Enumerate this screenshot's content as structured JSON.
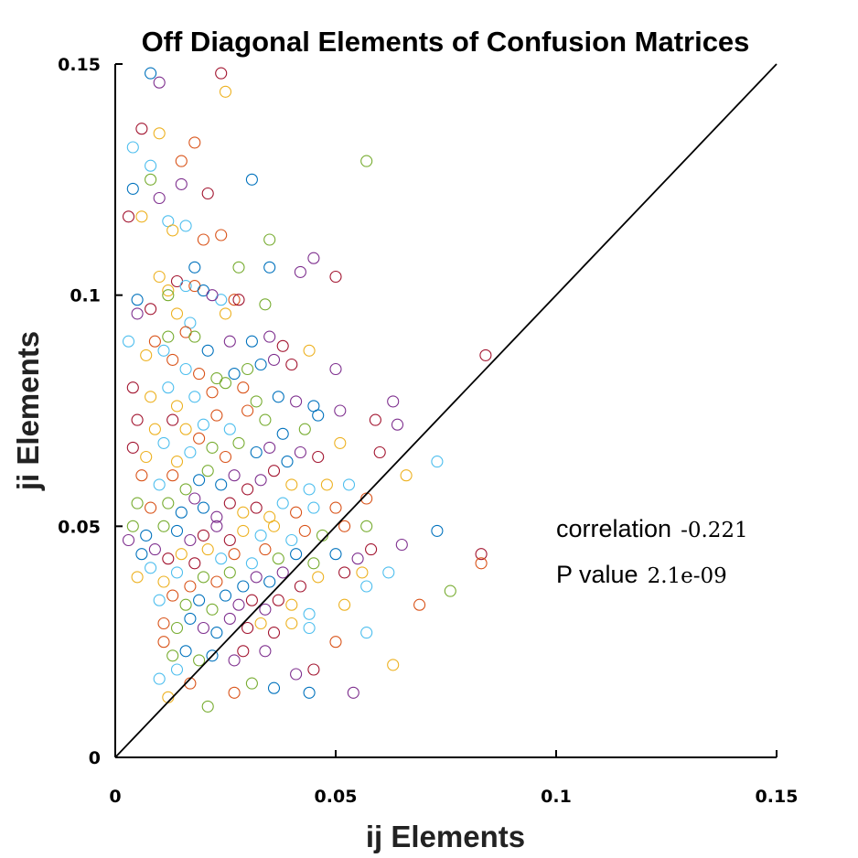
{
  "chart_data": {
    "type": "scatter",
    "title": "Off Diagonal Elements of Confusion Matrices",
    "xlabel": "ij Elements",
    "ylabel": "ji Elements",
    "xlim": [
      0,
      0.15
    ],
    "ylim": [
      0,
      0.15
    ],
    "xticks": [
      "0",
      "0.05",
      "0.1",
      "0.15"
    ],
    "yticks": [
      "0",
      "0.05",
      "0.1",
      "0.15"
    ],
    "grid": false,
    "reference_line": {
      "from": [
        0,
        0
      ],
      "to": [
        0.15,
        0.15
      ],
      "color": "#000000"
    },
    "marker": "open-circle",
    "series_colors": [
      "#0072BD",
      "#D95319",
      "#EDB120",
      "#7E2F8E",
      "#77AC30",
      "#4DBEEE",
      "#A2142F"
    ],
    "annotation": {
      "correlation_label": "correlation",
      "correlation_value": "-0.221",
      "pvalue_label": "P value",
      "pvalue_value": "2.1e-09"
    },
    "points": [
      [
        0.008,
        0.148
      ],
      [
        0.01,
        0.146
      ],
      [
        0.024,
        0.148
      ],
      [
        0.025,
        0.144
      ],
      [
        0.006,
        0.136
      ],
      [
        0.01,
        0.135
      ],
      [
        0.004,
        0.132
      ],
      [
        0.018,
        0.133
      ],
      [
        0.008,
        0.128
      ],
      [
        0.015,
        0.129
      ],
      [
        0.057,
        0.129
      ],
      [
        0.031,
        0.125
      ],
      [
        0.008,
        0.125
      ],
      [
        0.004,
        0.123
      ],
      [
        0.015,
        0.124
      ],
      [
        0.021,
        0.122
      ],
      [
        0.01,
        0.121
      ],
      [
        0.003,
        0.117
      ],
      [
        0.006,
        0.117
      ],
      [
        0.012,
        0.116
      ],
      [
        0.013,
        0.114
      ],
      [
        0.016,
        0.115
      ],
      [
        0.024,
        0.113
      ],
      [
        0.035,
        0.112
      ],
      [
        0.02,
        0.112
      ],
      [
        0.028,
        0.106
      ],
      [
        0.018,
        0.106
      ],
      [
        0.045,
        0.108
      ],
      [
        0.035,
        0.106
      ],
      [
        0.042,
        0.105
      ],
      [
        0.05,
        0.104
      ],
      [
        0.01,
        0.104
      ],
      [
        0.014,
        0.103
      ],
      [
        0.012,
        0.101
      ],
      [
        0.016,
        0.102
      ],
      [
        0.018,
        0.102
      ],
      [
        0.024,
        0.099
      ],
      [
        0.027,
        0.099
      ],
      [
        0.034,
        0.098
      ],
      [
        0.005,
        0.099
      ],
      [
        0.012,
        0.1
      ],
      [
        0.02,
        0.101
      ],
      [
        0.022,
        0.1
      ],
      [
        0.028,
        0.099
      ],
      [
        0.005,
        0.096
      ],
      [
        0.008,
        0.097
      ],
      [
        0.014,
        0.096
      ],
      [
        0.017,
        0.094
      ],
      [
        0.025,
        0.096
      ],
      [
        0.003,
        0.09
      ],
      [
        0.009,
        0.09
      ],
      [
        0.012,
        0.091
      ],
      [
        0.016,
        0.092
      ],
      [
        0.018,
        0.091
      ],
      [
        0.021,
        0.088
      ],
      [
        0.026,
        0.09
      ],
      [
        0.031,
        0.09
      ],
      [
        0.035,
        0.091
      ],
      [
        0.038,
        0.089
      ],
      [
        0.044,
        0.088
      ],
      [
        0.084,
        0.087
      ],
      [
        0.007,
        0.087
      ],
      [
        0.011,
        0.088
      ],
      [
        0.013,
        0.086
      ],
      [
        0.016,
        0.084
      ],
      [
        0.019,
        0.083
      ],
      [
        0.023,
        0.082
      ],
      [
        0.027,
        0.083
      ],
      [
        0.03,
        0.084
      ],
      [
        0.033,
        0.085
      ],
      [
        0.036,
        0.086
      ],
      [
        0.04,
        0.085
      ],
      [
        0.05,
        0.084
      ],
      [
        0.004,
        0.08
      ],
      [
        0.008,
        0.078
      ],
      [
        0.012,
        0.08
      ],
      [
        0.014,
        0.076
      ],
      [
        0.018,
        0.078
      ],
      [
        0.022,
        0.079
      ],
      [
        0.025,
        0.081
      ],
      [
        0.029,
        0.08
      ],
      [
        0.032,
        0.077
      ],
      [
        0.037,
        0.078
      ],
      [
        0.041,
        0.077
      ],
      [
        0.045,
        0.076
      ],
      [
        0.063,
        0.077
      ],
      [
        0.005,
        0.073
      ],
      [
        0.009,
        0.071
      ],
      [
        0.013,
        0.073
      ],
      [
        0.016,
        0.071
      ],
      [
        0.02,
        0.072
      ],
      [
        0.023,
        0.074
      ],
      [
        0.026,
        0.071
      ],
      [
        0.03,
        0.075
      ],
      [
        0.034,
        0.073
      ],
      [
        0.038,
        0.07
      ],
      [
        0.043,
        0.071
      ],
      [
        0.046,
        0.074
      ],
      [
        0.051,
        0.075
      ],
      [
        0.059,
        0.073
      ],
      [
        0.064,
        0.072
      ],
      [
        0.004,
        0.067
      ],
      [
        0.007,
        0.065
      ],
      [
        0.011,
        0.068
      ],
      [
        0.014,
        0.064
      ],
      [
        0.017,
        0.066
      ],
      [
        0.019,
        0.069
      ],
      [
        0.022,
        0.067
      ],
      [
        0.025,
        0.065
      ],
      [
        0.028,
        0.068
      ],
      [
        0.032,
        0.066
      ],
      [
        0.035,
        0.067
      ],
      [
        0.039,
        0.064
      ],
      [
        0.042,
        0.066
      ],
      [
        0.046,
        0.065
      ],
      [
        0.051,
        0.068
      ],
      [
        0.06,
        0.066
      ],
      [
        0.066,
        0.061
      ],
      [
        0.073,
        0.064
      ],
      [
        0.006,
        0.061
      ],
      [
        0.01,
        0.059
      ],
      [
        0.013,
        0.061
      ],
      [
        0.016,
        0.058
      ],
      [
        0.019,
        0.06
      ],
      [
        0.021,
        0.062
      ],
      [
        0.024,
        0.059
      ],
      [
        0.027,
        0.061
      ],
      [
        0.03,
        0.058
      ],
      [
        0.033,
        0.06
      ],
      [
        0.036,
        0.062
      ],
      [
        0.04,
        0.059
      ],
      [
        0.044,
        0.058
      ],
      [
        0.048,
        0.059
      ],
      [
        0.053,
        0.059
      ],
      [
        0.057,
        0.056
      ],
      [
        0.005,
        0.055
      ],
      [
        0.008,
        0.054
      ],
      [
        0.012,
        0.055
      ],
      [
        0.015,
        0.053
      ],
      [
        0.018,
        0.056
      ],
      [
        0.02,
        0.054
      ],
      [
        0.023,
        0.052
      ],
      [
        0.026,
        0.055
      ],
      [
        0.029,
        0.053
      ],
      [
        0.032,
        0.054
      ],
      [
        0.035,
        0.052
      ],
      [
        0.038,
        0.055
      ],
      [
        0.041,
        0.053
      ],
      [
        0.045,
        0.054
      ],
      [
        0.05,
        0.054
      ],
      [
        0.004,
        0.05
      ],
      [
        0.007,
        0.048
      ],
      [
        0.011,
        0.05
      ],
      [
        0.014,
        0.049
      ],
      [
        0.017,
        0.047
      ],
      [
        0.02,
        0.048
      ],
      [
        0.023,
        0.05
      ],
      [
        0.026,
        0.047
      ],
      [
        0.029,
        0.049
      ],
      [
        0.033,
        0.048
      ],
      [
        0.036,
        0.05
      ],
      [
        0.04,
        0.047
      ],
      [
        0.043,
        0.049
      ],
      [
        0.047,
        0.048
      ],
      [
        0.052,
        0.05
      ],
      [
        0.057,
        0.05
      ],
      [
        0.073,
        0.049
      ],
      [
        0.003,
        0.047
      ],
      [
        0.006,
        0.044
      ],
      [
        0.009,
        0.045
      ],
      [
        0.012,
        0.043
      ],
      [
        0.015,
        0.044
      ],
      [
        0.018,
        0.042
      ],
      [
        0.021,
        0.045
      ],
      [
        0.024,
        0.043
      ],
      [
        0.027,
        0.044
      ],
      [
        0.031,
        0.042
      ],
      [
        0.034,
        0.045
      ],
      [
        0.037,
        0.043
      ],
      [
        0.041,
        0.044
      ],
      [
        0.045,
        0.042
      ],
      [
        0.05,
        0.044
      ],
      [
        0.055,
        0.043
      ],
      [
        0.058,
        0.045
      ],
      [
        0.065,
        0.046
      ],
      [
        0.083,
        0.044
      ],
      [
        0.005,
        0.039
      ],
      [
        0.008,
        0.041
      ],
      [
        0.011,
        0.038
      ],
      [
        0.014,
        0.04
      ],
      [
        0.017,
        0.037
      ],
      [
        0.02,
        0.039
      ],
      [
        0.023,
        0.038
      ],
      [
        0.026,
        0.04
      ],
      [
        0.029,
        0.037
      ],
      [
        0.032,
        0.039
      ],
      [
        0.035,
        0.038
      ],
      [
        0.038,
        0.04
      ],
      [
        0.042,
        0.037
      ],
      [
        0.046,
        0.039
      ],
      [
        0.052,
        0.04
      ],
      [
        0.056,
        0.04
      ],
      [
        0.062,
        0.04
      ],
      [
        0.083,
        0.042
      ],
      [
        0.01,
        0.034
      ],
      [
        0.013,
        0.035
      ],
      [
        0.016,
        0.033
      ],
      [
        0.019,
        0.034
      ],
      [
        0.022,
        0.032
      ],
      [
        0.025,
        0.035
      ],
      [
        0.028,
        0.033
      ],
      [
        0.031,
        0.034
      ],
      [
        0.034,
        0.032
      ],
      [
        0.037,
        0.034
      ],
      [
        0.04,
        0.033
      ],
      [
        0.044,
        0.031
      ],
      [
        0.052,
        0.033
      ],
      [
        0.057,
        0.037
      ],
      [
        0.069,
        0.033
      ],
      [
        0.076,
        0.036
      ],
      [
        0.011,
        0.029
      ],
      [
        0.014,
        0.028
      ],
      [
        0.017,
        0.03
      ],
      [
        0.02,
        0.028
      ],
      [
        0.023,
        0.027
      ],
      [
        0.026,
        0.03
      ],
      [
        0.03,
        0.028
      ],
      [
        0.033,
        0.029
      ],
      [
        0.036,
        0.027
      ],
      [
        0.04,
        0.029
      ],
      [
        0.044,
        0.028
      ],
      [
        0.05,
        0.025
      ],
      [
        0.057,
        0.027
      ],
      [
        0.011,
        0.025
      ],
      [
        0.013,
        0.022
      ],
      [
        0.016,
        0.023
      ],
      [
        0.019,
        0.021
      ],
      [
        0.022,
        0.022
      ],
      [
        0.027,
        0.021
      ],
      [
        0.029,
        0.023
      ],
      [
        0.034,
        0.023
      ],
      [
        0.045,
        0.019
      ],
      [
        0.063,
        0.02
      ],
      [
        0.01,
        0.017
      ],
      [
        0.012,
        0.013
      ],
      [
        0.014,
        0.019
      ],
      [
        0.017,
        0.016
      ],
      [
        0.021,
        0.011
      ],
      [
        0.027,
        0.014
      ],
      [
        0.031,
        0.016
      ],
      [
        0.036,
        0.015
      ],
      [
        0.041,
        0.018
      ],
      [
        0.044,
        0.014
      ],
      [
        0.054,
        0.014
      ]
    ]
  }
}
